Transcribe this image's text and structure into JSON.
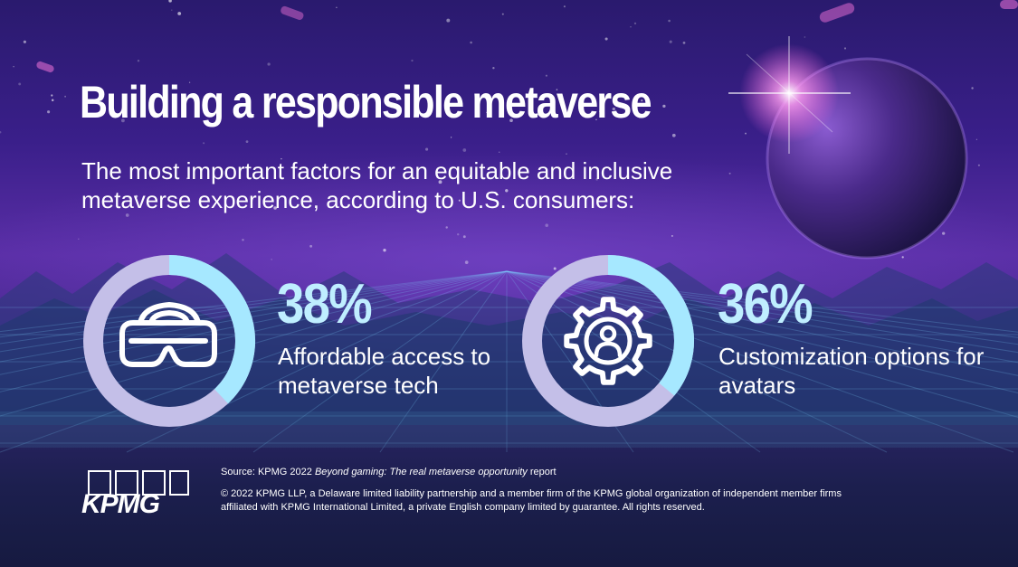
{
  "header": {
    "title": "Building a responsible metaverse",
    "subtitle": "The most important factors for an equitable and inclusive metaverse experience, according to U.S. consumers:"
  },
  "chart_data": [
    {
      "type": "pie",
      "values": [
        38
      ],
      "value_label": "38%",
      "label": "Affordable access to metaverse tech",
      "icon": "vr-headset-icon",
      "colors": {
        "filled": "#a6e8ff",
        "remainder": "#c4bfe8"
      }
    },
    {
      "type": "pie",
      "values": [
        36
      ],
      "value_label": "36%",
      "label": "Customization options for avatars",
      "icon": "gear-person-icon",
      "colors": {
        "filled": "#a6e8ff",
        "remainder": "#c4bfe8"
      }
    }
  ],
  "footer": {
    "source_prefix": "Source: KPMG 2022 ",
    "source_title": "Beyond gaming: The real metaverse opportunity",
    "source_suffix": " report",
    "copyright": "© 2022 KPMG LLP, a Delaware limited liability partnership and a member firm of the KPMG global organization of independent member firms affiliated with KPMG International Limited, a private English company limited by guarantee. All rights reserved.",
    "logo_text": "KPMG"
  },
  "colors": {
    "accent": "#a6e8ff",
    "ring_remainder": "#c4bfe8",
    "text": "#ffffff"
  }
}
